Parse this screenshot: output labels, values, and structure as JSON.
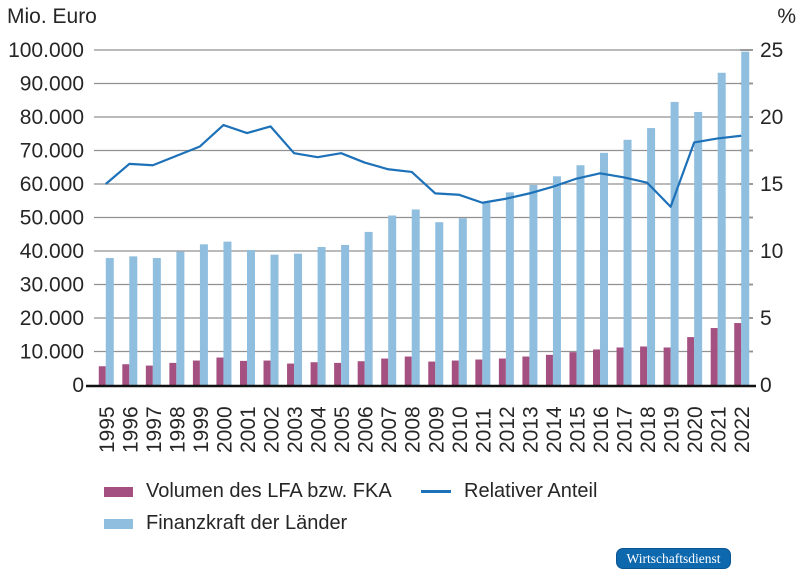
{
  "badge": {
    "label": "Wirtschaftsdienst",
    "bg": "#0e68ae",
    "border": "#0a5694"
  },
  "chart_data": {
    "type": "bar+line",
    "title": "",
    "legend_position": "bottom",
    "grid": true,
    "categories": [
      "1995",
      "1996",
      "1997",
      "1998",
      "1999",
      "2000",
      "2001",
      "2002",
      "2003",
      "2004",
      "2005",
      "2006",
      "2007",
      "2008",
      "2009",
      "2010",
      "2011",
      "2012",
      "2013",
      "2014",
      "2015",
      "2016",
      "2017",
      "2018",
      "2019",
      "2020",
      "2021",
      "2022"
    ],
    "series": [
      {
        "name": "Volumen des LFA bzw. FKA",
        "type": "bar",
        "axis": "left",
        "values": [
          5600,
          6200,
          5800,
          6600,
          7300,
          8200,
          7200,
          7300,
          6400,
          6800,
          6600,
          7100,
          7900,
          8500,
          7000,
          7300,
          7600,
          7900,
          8500,
          9000,
          9800,
          10600,
          11200,
          11500,
          11200,
          14300,
          17000,
          18500
        ]
      },
      {
        "name": "Finanzkraft der Länder",
        "type": "bar",
        "axis": "left",
        "values": [
          37900,
          38400,
          37900,
          39800,
          42000,
          42800,
          40300,
          38900,
          39200,
          41200,
          41800,
          45700,
          50600,
          52400,
          48600,
          49800,
          54400,
          57500,
          59700,
          62300,
          65600,
          69300,
          73200,
          76700,
          84500,
          81500,
          93200,
          99500
        ]
      },
      {
        "name": "Relativer Anteil",
        "type": "line",
        "axis": "right",
        "values": [
          15.0,
          16.5,
          16.4,
          17.1,
          17.8,
          19.4,
          18.8,
          19.3,
          17.3,
          17.0,
          17.3,
          16.6,
          16.1,
          15.9,
          14.3,
          14.2,
          13.6,
          13.9,
          14.3,
          14.8,
          15.4,
          15.8,
          15.5,
          15.1,
          13.3,
          18.1,
          18.4,
          18.6
        ]
      }
    ],
    "left_axis": {
      "title": "Mio. Euro",
      "min": 0,
      "max": 100000,
      "ticks": [
        {
          "value": 0,
          "label": "0"
        },
        {
          "value": 10000,
          "label": "10.000"
        },
        {
          "value": 20000,
          "label": "20.000"
        },
        {
          "value": 30000,
          "label": "30.000"
        },
        {
          "value": 40000,
          "label": "40.000"
        },
        {
          "value": 50000,
          "label": "50.000"
        },
        {
          "value": 60000,
          "label": "60.000"
        },
        {
          "value": 70000,
          "label": "70.000"
        },
        {
          "value": 80000,
          "label": "80.000"
        },
        {
          "value": 90000,
          "label": "90.000"
        },
        {
          "value": 100000,
          "label": "100.000"
        }
      ]
    },
    "right_axis": {
      "title": "%",
      "min": 0,
      "max": 25,
      "tick_step": 2.5,
      "labels": [
        {
          "value": 0,
          "label": "0"
        },
        {
          "value": 5,
          "label": "5"
        },
        {
          "value": 10,
          "label": "10"
        },
        {
          "value": 15,
          "label": "15"
        },
        {
          "value": 20,
          "label": "20"
        },
        {
          "value": 25,
          "label": "25"
        }
      ]
    },
    "colors": {
      "volumen": "#a45181",
      "finanzkraft": "#90bedf",
      "line": "#1d71b8",
      "grid": "#919191",
      "axis": "#111111",
      "text": "#262626"
    }
  }
}
